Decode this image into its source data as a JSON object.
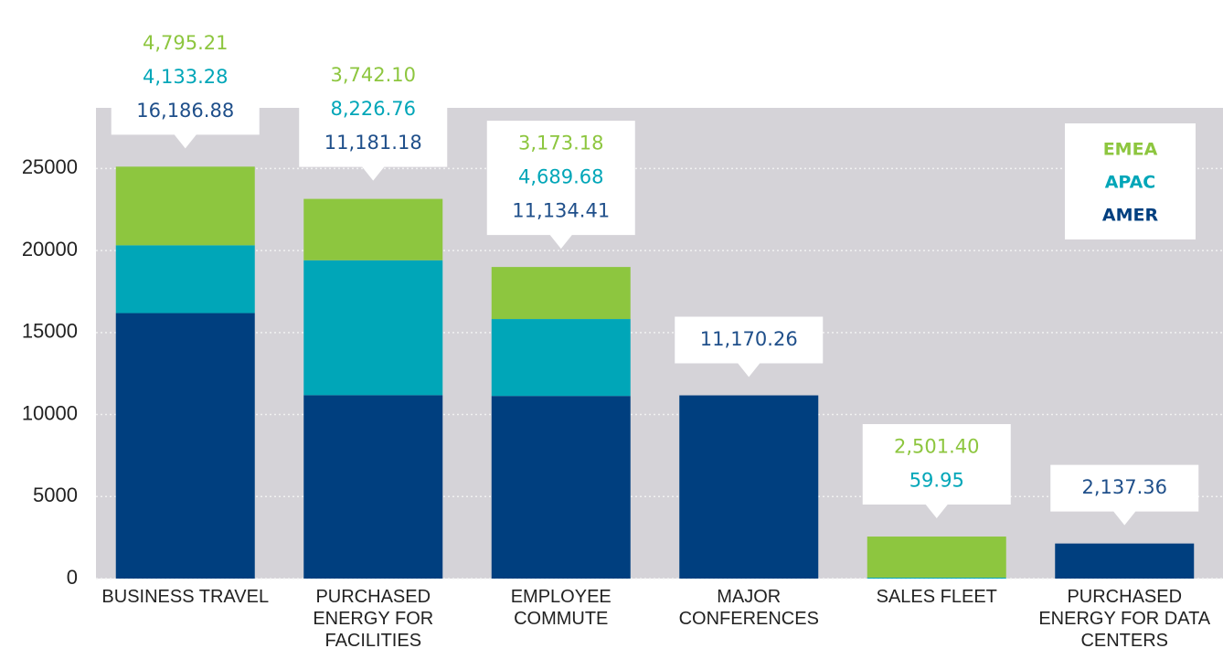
{
  "chart_data": {
    "type": "stacked_bar",
    "categories": [
      "BUSINESS TRAVEL",
      "PURCHASED ENERGY FOR FACILITIES",
      "EMPLOYEE COMMUTE",
      "MAJOR CONFERENCES",
      "SALES FLEET",
      "PURCHASED ENERGY FOR DATA CENTERS"
    ],
    "series": [
      {
        "name": "AMER",
        "color": "#003f7f",
        "values": [
          16186.88,
          11181.18,
          11134.41,
          11170.26,
          null,
          2137.36
        ],
        "value_labels": [
          "16,186.88",
          "11,181.18",
          "11,134.41",
          "11,170.26",
          null,
          "2,137.36"
        ]
      },
      {
        "name": "APAC",
        "color": "#00a6b8",
        "values": [
          4133.28,
          8226.76,
          4689.68,
          null,
          59.95,
          null
        ],
        "value_labels": [
          "4,133.28",
          "8,226.76",
          "4,689.68",
          null,
          "59.95",
          null
        ]
      },
      {
        "name": "EMEA",
        "color": "#8dc63f",
        "values": [
          4795.21,
          3742.1,
          3173.18,
          null,
          2501.4,
          null
        ],
        "value_labels": [
          "4,795.21",
          "3,742.10",
          "3,173.18",
          null,
          "2,501.40",
          null
        ]
      }
    ],
    "ylim": [
      0,
      28700
    ],
    "yticks": [
      0,
      5000,
      10000,
      15000,
      20000,
      25000
    ],
    "grid": true,
    "legend": "upper right"
  }
}
